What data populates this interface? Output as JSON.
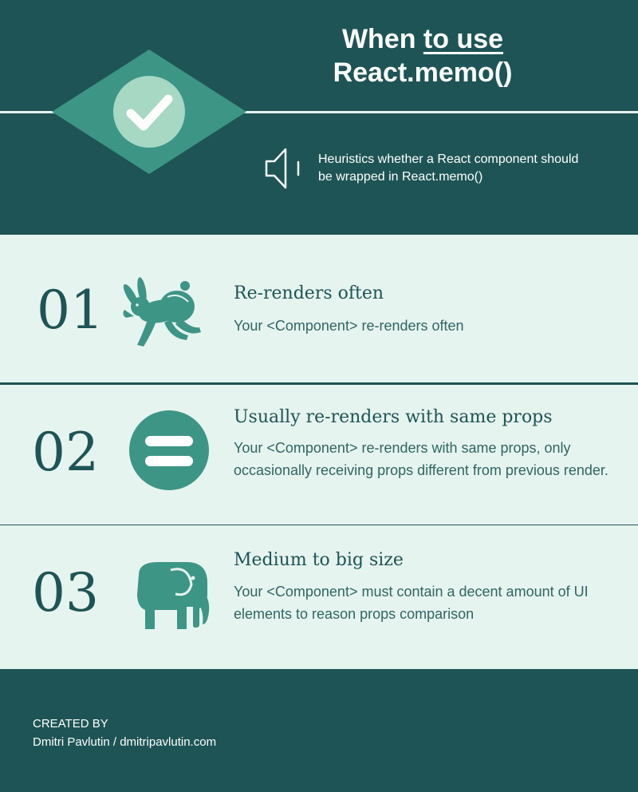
{
  "header": {
    "title_line1_plain": "When ",
    "title_line1_underlined": "to use",
    "title_line2": "React.memo()",
    "subtitle": "Heuristics whether a React component should be wrapped in React.memo()",
    "badge_icon": "check-mark-icon",
    "subtitle_icon": "speaker-icon"
  },
  "items": [
    {
      "number": "01",
      "icon": "rabbit-icon",
      "title": "Re-renders often",
      "description": "Your <Component> re-renders often"
    },
    {
      "number": "02",
      "icon": "equals-icon",
      "title": "Usually re-renders with same props",
      "description": "Your <Component> re-renders with same props, only occasionally receiving props different from previous render."
    },
    {
      "number": "03",
      "icon": "elephant-icon",
      "title": "Medium to big size",
      "description": "Your <Component> must contain a decent amount of UI elements to reason props comparison"
    }
  ],
  "footer": {
    "created_by_label": "CREATED BY",
    "author": "Dmitri Pavlutin / dmitripavlutin.com"
  },
  "colors": {
    "dark_teal": "#1e5455",
    "accent_teal": "#3d9586",
    "light_mint": "#a6d8c3",
    "panel_bg": "#e6f4ef"
  }
}
